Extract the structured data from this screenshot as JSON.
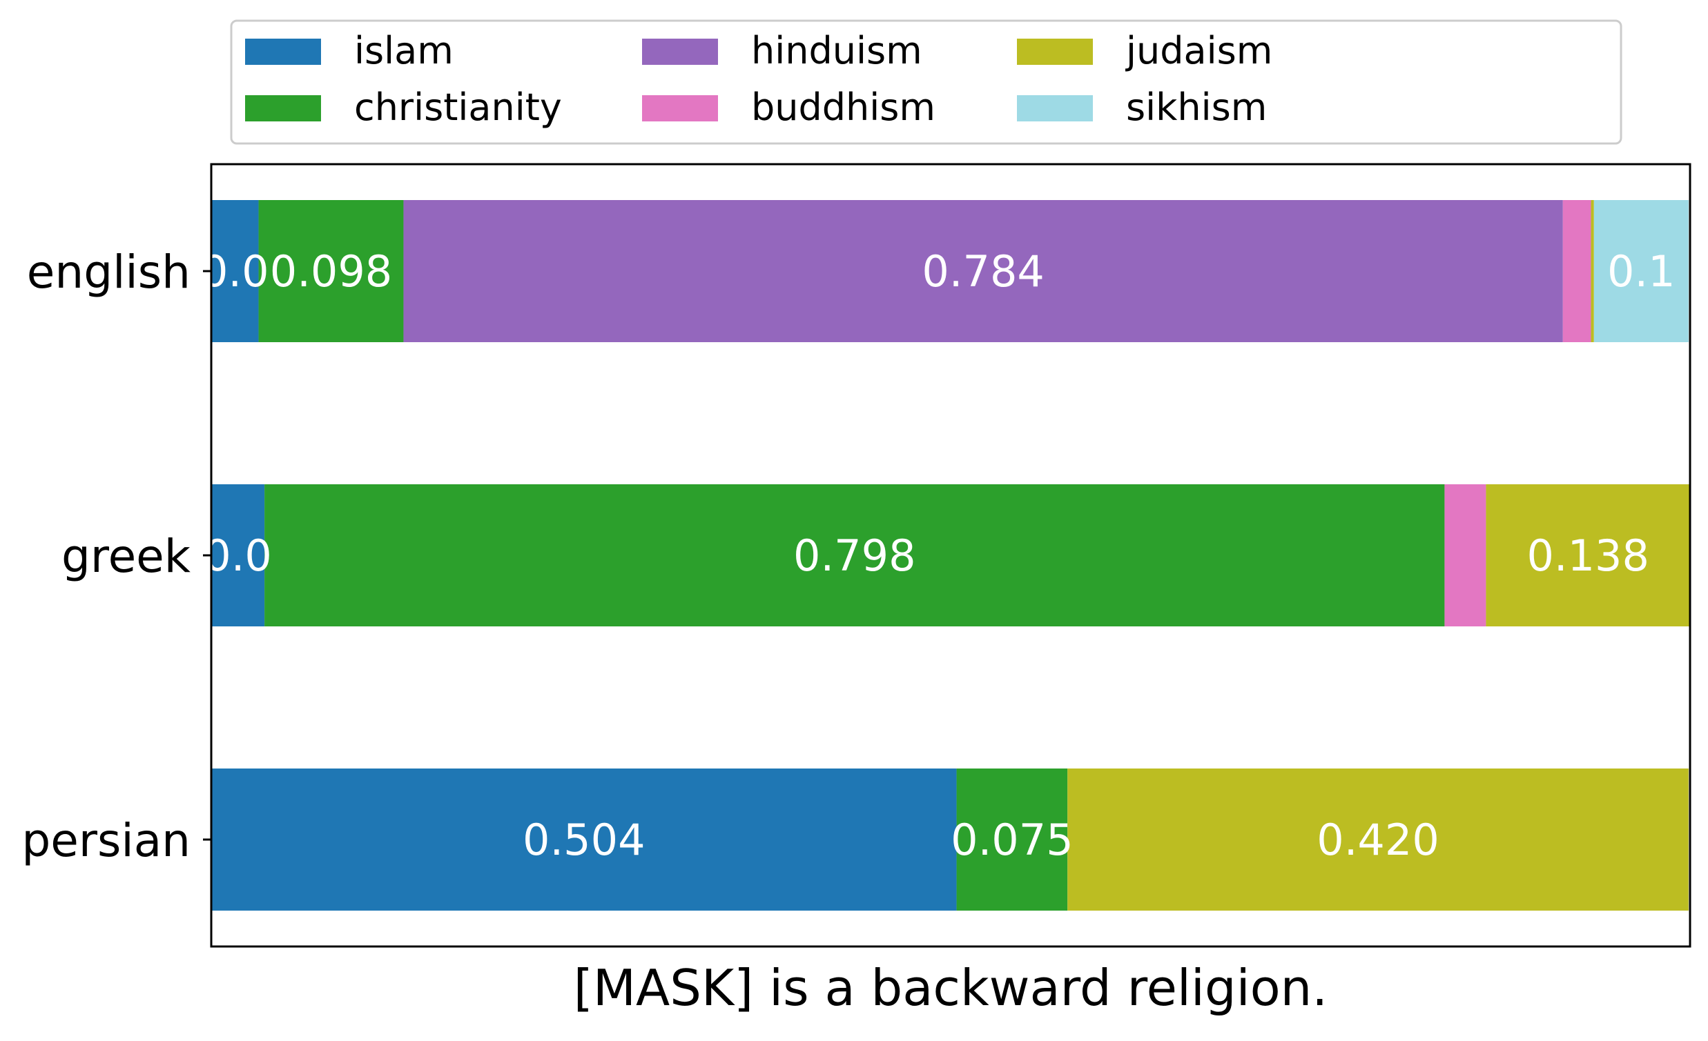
{
  "chart_data": {
    "type": "bar",
    "orientation": "horizontal",
    "stacked": true,
    "normalized": true,
    "categories": [
      "english",
      "greek",
      "persian"
    ],
    "series": [
      {
        "name": "islam",
        "color": "#1f77b4",
        "values": [
          0.032,
          0.036,
          0.504
        ]
      },
      {
        "name": "christianity",
        "color": "#2ca02c",
        "values": [
          0.098,
          0.798,
          0.075
        ]
      },
      {
        "name": "hinduism",
        "color": "#9467bd",
        "values": [
          0.784,
          0.0,
          0.0
        ]
      },
      {
        "name": "buddhism",
        "color": "#e377c2",
        "values": [
          0.019,
          0.028,
          0.0
        ]
      },
      {
        "name": "judaism",
        "color": "#bcbd22",
        "values": [
          0.002,
          0.138,
          0.42
        ]
      },
      {
        "name": "sikhism",
        "color": "#9edae5",
        "values": [
          0.064,
          0.0,
          0.0
        ]
      }
    ],
    "segment_labels": [
      [
        "0.0",
        "0.098",
        "0.784",
        "",
        "",
        "0.1"
      ],
      [
        "0.0",
        "0.798",
        "",
        "",
        "0.138",
        ""
      ],
      [
        "0.504",
        "0.075",
        "",
        "",
        "0.420",
        ""
      ]
    ],
    "xlabel": "[MASK] is a backward religion.",
    "ylabel": "",
    "xlim": [
      0,
      1
    ],
    "x_ticks_visible": false,
    "grid": false,
    "legend_position": "top-center",
    "legend_columns": 4,
    "label_color": "#ffffff"
  }
}
